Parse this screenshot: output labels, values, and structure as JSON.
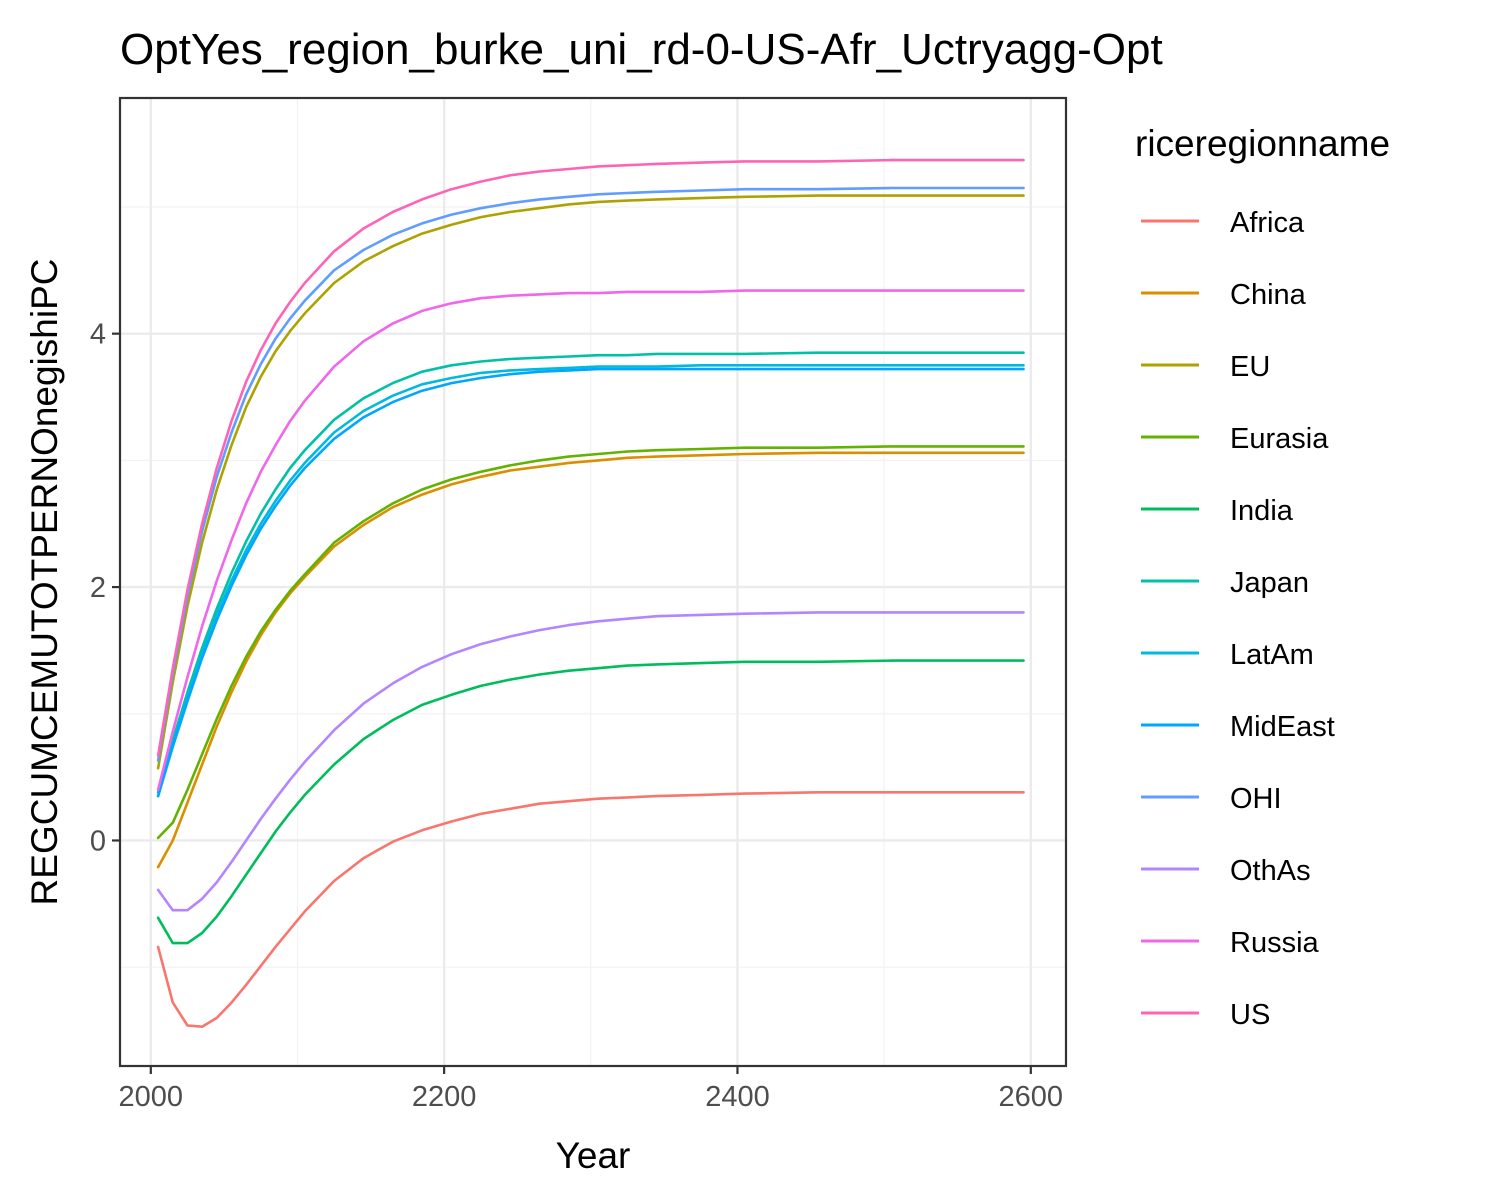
{
  "chart_data": {
    "type": "line",
    "title": "OptYes_region_burke_uni_rd-0-US-Afr_Uctryagg-Opt",
    "xlabel": "Year",
    "ylabel": "REGCUMCEMUTOTPERNOnegishiPC",
    "xlim": [
      1979,
      2624
    ],
    "ylim": [
      -1.78,
      5.86
    ],
    "x_ticks": [
      2000,
      2200,
      2400,
      2600
    ],
    "y_ticks": [
      0,
      2,
      4
    ],
    "grid": true,
    "legend": {
      "title": "riceregionname",
      "position": "right"
    },
    "x": [
      2005,
      2015,
      2025,
      2035,
      2045,
      2055,
      2065,
      2075,
      2085,
      2095,
      2105,
      2125,
      2145,
      2165,
      2185,
      2205,
      2225,
      2245,
      2265,
      2285,
      2305,
      2325,
      2345,
      2375,
      2405,
      2455,
      2505,
      2555,
      2595
    ],
    "series": [
      {
        "name": "Africa",
        "color": "#F8766D",
        "values": [
          -0.84,
          -1.28,
          -1.46,
          -1.47,
          -1.4,
          -1.28,
          -1.14,
          -0.99,
          -0.84,
          -0.7,
          -0.56,
          -0.32,
          -0.14,
          -0.01,
          0.08,
          0.15,
          0.21,
          0.25,
          0.29,
          0.31,
          0.33,
          0.34,
          0.35,
          0.36,
          0.37,
          0.38,
          0.38,
          0.38,
          0.38
        ]
      },
      {
        "name": "China",
        "color": "#DB8E00",
        "values": [
          -0.21,
          0.0,
          0.3,
          0.6,
          0.9,
          1.17,
          1.41,
          1.62,
          1.8,
          1.95,
          2.08,
          2.32,
          2.49,
          2.63,
          2.73,
          2.81,
          2.87,
          2.92,
          2.95,
          2.98,
          3.0,
          3.02,
          3.03,
          3.04,
          3.05,
          3.06,
          3.06,
          3.06,
          3.06
        ]
      },
      {
        "name": "EU",
        "color": "#AEA200",
        "values": [
          0.57,
          1.25,
          1.85,
          2.35,
          2.77,
          3.12,
          3.42,
          3.66,
          3.86,
          4.02,
          4.16,
          4.4,
          4.57,
          4.69,
          4.79,
          4.86,
          4.92,
          4.96,
          4.99,
          5.02,
          5.04,
          5.05,
          5.06,
          5.07,
          5.08,
          5.09,
          5.09,
          5.09,
          5.09
        ]
      },
      {
        "name": "Eurasia",
        "color": "#64B200",
        "values": [
          0.02,
          0.14,
          0.4,
          0.68,
          0.96,
          1.22,
          1.45,
          1.65,
          1.82,
          1.97,
          2.1,
          2.35,
          2.52,
          2.66,
          2.77,
          2.85,
          2.91,
          2.96,
          3.0,
          3.03,
          3.05,
          3.07,
          3.08,
          3.09,
          3.1,
          3.1,
          3.11,
          3.11,
          3.11
        ]
      },
      {
        "name": "India",
        "color": "#00BD5C",
        "values": [
          -0.61,
          -0.81,
          -0.81,
          -0.73,
          -0.6,
          -0.44,
          -0.27,
          -0.1,
          0.07,
          0.22,
          0.36,
          0.6,
          0.8,
          0.95,
          1.07,
          1.15,
          1.22,
          1.27,
          1.31,
          1.34,
          1.36,
          1.38,
          1.39,
          1.4,
          1.41,
          1.41,
          1.42,
          1.42,
          1.42
        ]
      },
      {
        "name": "Japan",
        "color": "#00C1A7",
        "values": [
          0.38,
          0.79,
          1.17,
          1.52,
          1.83,
          2.11,
          2.36,
          2.58,
          2.77,
          2.94,
          3.08,
          3.32,
          3.49,
          3.61,
          3.7,
          3.75,
          3.78,
          3.8,
          3.81,
          3.82,
          3.83,
          3.83,
          3.84,
          3.84,
          3.84,
          3.85,
          3.85,
          3.85,
          3.85
        ]
      },
      {
        "name": "LatAm",
        "color": "#00BADE",
        "values": [
          0.35,
          0.76,
          1.13,
          1.47,
          1.78,
          2.05,
          2.29,
          2.5,
          2.68,
          2.84,
          2.98,
          3.22,
          3.39,
          3.51,
          3.6,
          3.65,
          3.69,
          3.71,
          3.72,
          3.73,
          3.74,
          3.74,
          3.74,
          3.75,
          3.75,
          3.75,
          3.75,
          3.75,
          3.75
        ]
      },
      {
        "name": "MidEast",
        "color": "#00A6FF",
        "values": [
          0.35,
          0.74,
          1.1,
          1.44,
          1.74,
          2.01,
          2.25,
          2.46,
          2.64,
          2.8,
          2.94,
          3.17,
          3.34,
          3.46,
          3.55,
          3.61,
          3.65,
          3.68,
          3.7,
          3.71,
          3.72,
          3.72,
          3.72,
          3.72,
          3.72,
          3.72,
          3.72,
          3.72,
          3.72
        ]
      },
      {
        "name": "OHI",
        "color": "#619CFF",
        "values": [
          0.63,
          1.32,
          1.93,
          2.44,
          2.87,
          3.22,
          3.52,
          3.76,
          3.96,
          4.12,
          4.26,
          4.5,
          4.66,
          4.78,
          4.87,
          4.94,
          4.99,
          5.03,
          5.06,
          5.08,
          5.1,
          5.11,
          5.12,
          5.13,
          5.14,
          5.14,
          5.15,
          5.15,
          5.15
        ]
      },
      {
        "name": "OthAs",
        "color": "#B385FF",
        "values": [
          -0.39,
          -0.55,
          -0.55,
          -0.46,
          -0.33,
          -0.17,
          0.0,
          0.17,
          0.33,
          0.48,
          0.62,
          0.87,
          1.08,
          1.24,
          1.37,
          1.47,
          1.55,
          1.61,
          1.66,
          1.7,
          1.73,
          1.75,
          1.77,
          1.78,
          1.79,
          1.8,
          1.8,
          1.8,
          1.8
        ]
      },
      {
        "name": "Russia",
        "color": "#EF67EB",
        "values": [
          0.4,
          0.86,
          1.29,
          1.69,
          2.05,
          2.37,
          2.66,
          2.91,
          3.12,
          3.31,
          3.47,
          3.74,
          3.94,
          4.08,
          4.18,
          4.24,
          4.28,
          4.3,
          4.31,
          4.32,
          4.32,
          4.33,
          4.33,
          4.33,
          4.34,
          4.34,
          4.34,
          4.34,
          4.34
        ]
      },
      {
        "name": "US",
        "color": "#FF63B6",
        "values": [
          0.67,
          1.36,
          1.98,
          2.5,
          2.94,
          3.31,
          3.62,
          3.87,
          4.08,
          4.25,
          4.4,
          4.65,
          4.83,
          4.96,
          5.06,
          5.14,
          5.2,
          5.25,
          5.28,
          5.3,
          5.32,
          5.33,
          5.34,
          5.35,
          5.36,
          5.36,
          5.37,
          5.37,
          5.37
        ]
      }
    ]
  }
}
